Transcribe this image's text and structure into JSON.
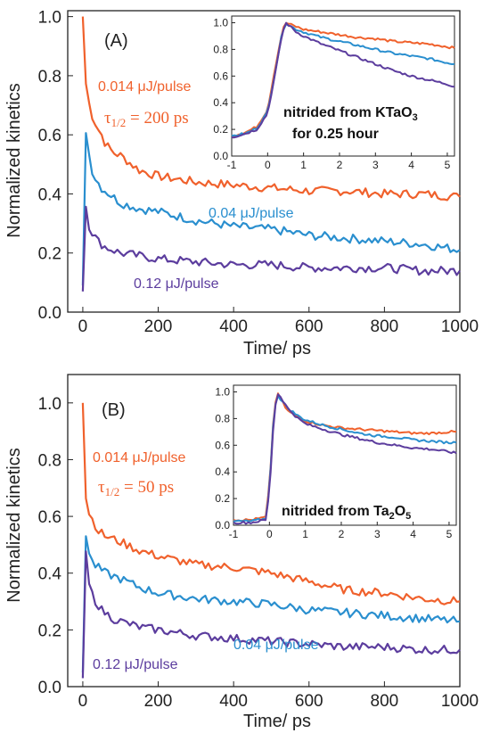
{
  "colors": {
    "orange": "#f0612c",
    "blue": "#2a8fcf",
    "purple": "#5c3d9e",
    "axis": "#222222"
  },
  "chart_data": [
    {
      "type": "line",
      "panel_label": "(A)",
      "xlabel": "Time/ ps",
      "ylabel": "Normalized kinetics",
      "xlim": [
        -40,
        1000
      ],
      "ylim": [
        0,
        1.02
      ],
      "xticks": [
        "0",
        "200",
        "400",
        "600",
        "800",
        "1000"
      ],
      "yticks": [
        "0.0",
        "0.2",
        "0.4",
        "0.6",
        "0.8",
        "1.0"
      ],
      "tau_label": "τ1/2 = 200 ps",
      "series": [
        {
          "name": "0.014 μJ/pulse",
          "color": "#f0612c",
          "x": [
            0,
            5,
            10,
            15,
            20,
            30,
            40,
            50,
            60,
            80,
            100,
            150,
            200,
            300,
            400,
            500,
            600,
            700,
            800,
            900,
            1000
          ],
          "values": [
            1.0,
            0.82,
            0.75,
            0.72,
            0.68,
            0.65,
            0.62,
            0.6,
            0.57,
            0.54,
            0.53,
            0.48,
            0.46,
            0.44,
            0.43,
            0.42,
            0.41,
            0.41,
            0.4,
            0.4,
            0.39
          ]
        },
        {
          "name": "0.04 μJ/pulse",
          "color": "#2a8fcf",
          "x": [
            0,
            5,
            10,
            15,
            20,
            30,
            40,
            50,
            60,
            80,
            100,
            150,
            200,
            300,
            400,
            500,
            600,
            700,
            800,
            900,
            1000
          ],
          "values": [
            0.09,
            0.65,
            0.6,
            0.55,
            0.5,
            0.46,
            0.44,
            0.42,
            0.41,
            0.39,
            0.37,
            0.35,
            0.34,
            0.31,
            0.29,
            0.28,
            0.26,
            0.25,
            0.24,
            0.23,
            0.21
          ]
        },
        {
          "name": "0.12 μJ/pulse",
          "color": "#5c3d9e",
          "x": [
            0,
            5,
            10,
            15,
            20,
            30,
            40,
            50,
            60,
            80,
            100,
            150,
            200,
            300,
            400,
            500,
            600,
            700,
            800,
            900,
            1000
          ],
          "values": [
            0.07,
            0.4,
            0.34,
            0.3,
            0.28,
            0.26,
            0.24,
            0.23,
            0.22,
            0.21,
            0.2,
            0.19,
            0.18,
            0.17,
            0.16,
            0.16,
            0.15,
            0.15,
            0.15,
            0.14,
            0.14
          ]
        }
      ],
      "inset": {
        "xlim": [
          -1,
          5.2
        ],
        "ylim": [
          0,
          1.05
        ],
        "xticks": [
          "-1",
          "0",
          "1",
          "2",
          "3",
          "4",
          "5"
        ],
        "yticks": [
          "0.0",
          "0.2",
          "0.4",
          "0.6",
          "0.8",
          "1.0"
        ],
        "annotation_line1": "nitrided from KTaO",
        "annotation_sub": "3",
        "annotation_line2": "for 0.25 hour",
        "x": [
          -1,
          -0.6,
          -0.3,
          0,
          0.2,
          0.4,
          0.5,
          0.6,
          0.8,
          1,
          1.5,
          2,
          2.5,
          3,
          3.5,
          4,
          4.5,
          5,
          5.2
        ],
        "series": [
          {
            "name": "0.014 μJ/pulse",
            "color": "#f0612c",
            "values": [
              0.15,
              0.18,
              0.22,
              0.35,
              0.65,
              0.93,
              1.0,
              0.99,
              0.97,
              0.95,
              0.93,
              0.91,
              0.89,
              0.88,
              0.86,
              0.85,
              0.84,
              0.82,
              0.81
            ]
          },
          {
            "name": "0.04 μJ/pulse",
            "color": "#2a8fcf",
            "values": [
              0.15,
              0.17,
              0.21,
              0.33,
              0.62,
              0.92,
              1.0,
              0.98,
              0.95,
              0.93,
              0.89,
              0.86,
              0.83,
              0.8,
              0.77,
              0.75,
              0.73,
              0.7,
              0.69
            ]
          },
          {
            "name": "0.12 μJ/pulse",
            "color": "#5c3d9e",
            "values": [
              0.14,
              0.17,
              0.2,
              0.32,
              0.6,
              0.91,
              1.0,
              0.98,
              0.93,
              0.9,
              0.84,
              0.79,
              0.74,
              0.69,
              0.64,
              0.6,
              0.57,
              0.54,
              0.52
            ]
          }
        ]
      }
    },
    {
      "type": "line",
      "panel_label": "(B)",
      "xlabel": "Time/ ps",
      "ylabel": "Normalized kinetics",
      "xlim": [
        -40,
        1000
      ],
      "ylim": [
        0,
        1.1
      ],
      "xticks": [
        "0",
        "200",
        "400",
        "600",
        "800",
        "1000"
      ],
      "yticks": [
        "0.0",
        "0.2",
        "0.4",
        "0.6",
        "0.8",
        "1.0"
      ],
      "tau_label": "τ1/2 = 50 ps",
      "series": [
        {
          "name": "0.014 μJ/pulse",
          "color": "#f0612c",
          "x": [
            0,
            5,
            10,
            15,
            20,
            30,
            40,
            50,
            60,
            80,
            100,
            150,
            200,
            300,
            400,
            500,
            600,
            700,
            800,
            900,
            1000
          ],
          "values": [
            1.0,
            0.7,
            0.65,
            0.62,
            0.6,
            0.58,
            0.55,
            0.54,
            0.53,
            0.52,
            0.51,
            0.48,
            0.46,
            0.43,
            0.42,
            0.4,
            0.37,
            0.34,
            0.33,
            0.31,
            0.3
          ]
        },
        {
          "name": "0.04 μJ/pulse",
          "color": "#2a8fcf",
          "x": [
            0,
            5,
            10,
            15,
            20,
            30,
            40,
            50,
            60,
            80,
            100,
            150,
            200,
            300,
            400,
            500,
            600,
            700,
            800,
            900,
            1000
          ],
          "values": [
            0.05,
            0.58,
            0.52,
            0.48,
            0.45,
            0.43,
            0.42,
            0.41,
            0.4,
            0.39,
            0.38,
            0.35,
            0.33,
            0.31,
            0.3,
            0.29,
            0.27,
            0.26,
            0.25,
            0.24,
            0.23
          ]
        },
        {
          "name": "0.12 μJ/pulse",
          "color": "#5c3d9e",
          "x": [
            0,
            5,
            10,
            15,
            20,
            30,
            40,
            50,
            60,
            80,
            100,
            150,
            200,
            300,
            400,
            500,
            600,
            700,
            800,
            900,
            1000
          ],
          "values": [
            0.03,
            0.55,
            0.42,
            0.37,
            0.34,
            0.31,
            0.29,
            0.27,
            0.26,
            0.24,
            0.23,
            0.21,
            0.2,
            0.18,
            0.17,
            0.16,
            0.15,
            0.14,
            0.14,
            0.13,
            0.13
          ]
        }
      ],
      "inset": {
        "xlim": [
          -1,
          5.2
        ],
        "ylim": [
          0,
          1.05
        ],
        "xticks": [
          "-1",
          "0",
          "1",
          "2",
          "3",
          "4",
          "5"
        ],
        "yticks": [
          "0.0",
          "0.2",
          "0.4",
          "0.6",
          "0.8",
          "1.0"
        ],
        "annotation_line1": "nitrided from Ta",
        "annotation_sub": "2",
        "annotation_mid": "O",
        "annotation_sub2": "5",
        "x": [
          -1,
          -0.5,
          -0.1,
          0,
          0.1,
          0.2,
          0.3,
          0.5,
          0.8,
          1,
          1.5,
          2,
          2.5,
          3,
          3.5,
          4,
          4.5,
          5,
          5.2
        ],
        "series": [
          {
            "name": "0.014 μJ/pulse",
            "color": "#f0612c",
            "values": [
              0.04,
              0.04,
              0.06,
              0.3,
              0.75,
              1.0,
              0.95,
              0.86,
              0.81,
              0.78,
              0.75,
              0.73,
              0.72,
              0.71,
              0.7,
              0.69,
              0.69,
              0.7,
              0.7
            ]
          },
          {
            "name": "0.04 μJ/pulse",
            "color": "#2a8fcf",
            "values": [
              0.03,
              0.03,
              0.05,
              0.28,
              0.73,
              0.99,
              0.95,
              0.88,
              0.82,
              0.79,
              0.75,
              0.72,
              0.69,
              0.67,
              0.66,
              0.64,
              0.63,
              0.62,
              0.62
            ]
          },
          {
            "name": "0.12 μJ/pulse",
            "color": "#5c3d9e",
            "values": [
              0.02,
              0.02,
              0.04,
              0.25,
              0.7,
              0.99,
              0.97,
              0.88,
              0.8,
              0.76,
              0.72,
              0.68,
              0.65,
              0.62,
              0.6,
              0.58,
              0.57,
              0.55,
              0.54
            ]
          }
        ]
      }
    }
  ]
}
